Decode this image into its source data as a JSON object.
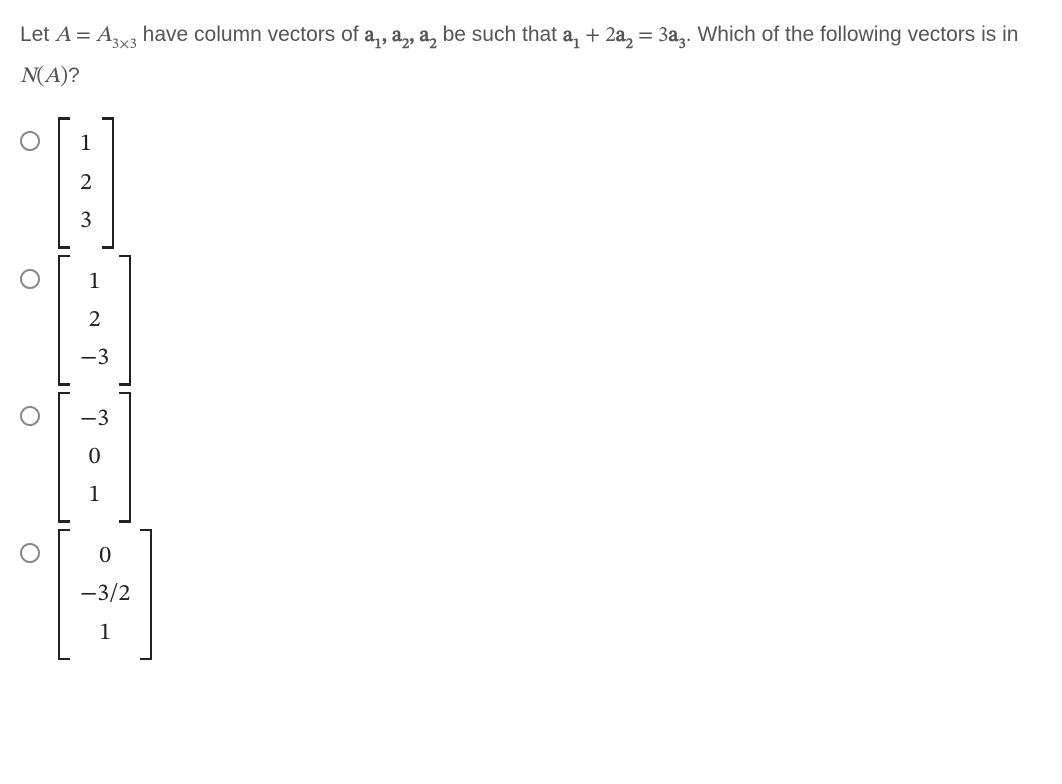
{
  "question": {
    "prefix": "Let ",
    "A": "A",
    "eq": " = ",
    "Asize": "A",
    "sizesub": "3×3",
    "mid1": " have column vectors of ",
    "a": "a",
    "s1": "1",
    "comma": ", ",
    "s2": "2",
    "mid2": " be such that ",
    "plus": " + ",
    "two": "2",
    "eq2": " = ",
    "three": "3",
    "s3": "3",
    "mid3": ". Which of the following vectors is in ",
    "N": "N",
    "paren_open": "(",
    "paren_close": ")",
    "qmark": "?"
  },
  "options": [
    {
      "entries": [
        "1",
        "2",
        "3"
      ]
    },
    {
      "entries": [
        "1",
        "2",
        "−3"
      ]
    },
    {
      "entries": [
        "−3",
        "0",
        "1"
      ]
    },
    {
      "entries": [
        "0",
        "−3/2",
        "1"
      ]
    }
  ],
  "style": {
    "text_color": "#555555",
    "math_color": "#222222",
    "radio_border": "#888888",
    "bg": "#ffffff",
    "question_fontsize": 21,
    "vector_fontsize": 24,
    "bracket_thickness": 2.5
  }
}
